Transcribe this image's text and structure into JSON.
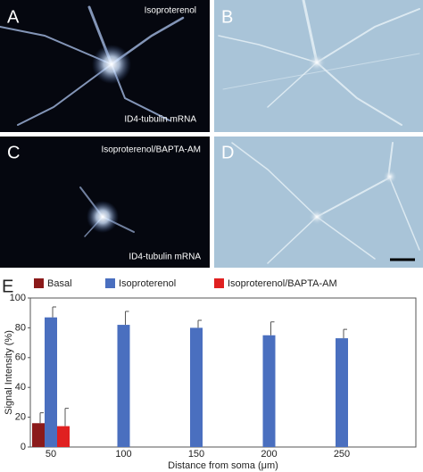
{
  "panels": [
    {
      "label": "A",
      "texts": [
        "Isoproterenol",
        "ID4-tubulin mRNA"
      ]
    },
    {
      "label": "B"
    },
    {
      "label": "C",
      "texts": [
        "Isoproterenol/BAPTA-AM",
        "ID4-tubulin mRNA"
      ]
    },
    {
      "label": "D"
    }
  ],
  "chart_data": {
    "type": "bar",
    "label": "E",
    "xlabel": "Distance from soma (μm)",
    "ylabel": "Signal Intensity (%)",
    "categories": [
      "50",
      "100",
      "150",
      "200",
      "250"
    ],
    "series": [
      {
        "name": "Basal",
        "color": "#8b1a1a",
        "values": [
          16,
          null,
          null,
          null,
          null
        ],
        "errors": [
          7,
          null,
          null,
          null,
          null
        ]
      },
      {
        "name": "Isoproterenol",
        "color": "#4a6fbf",
        "values": [
          87,
          82,
          80,
          75,
          73
        ],
        "errors": [
          7,
          9,
          5,
          9,
          6
        ]
      },
      {
        "name": "Isoproterenol/BAPTA-AM",
        "color": "#e02020",
        "values": [
          14,
          null,
          null,
          null,
          null
        ],
        "errors": [
          12,
          null,
          null,
          null,
          null
        ]
      }
    ],
    "ylim": [
      0,
      100
    ],
    "yticks": [
      0,
      20,
      40,
      60,
      80,
      100
    ],
    "legend": "top"
  }
}
